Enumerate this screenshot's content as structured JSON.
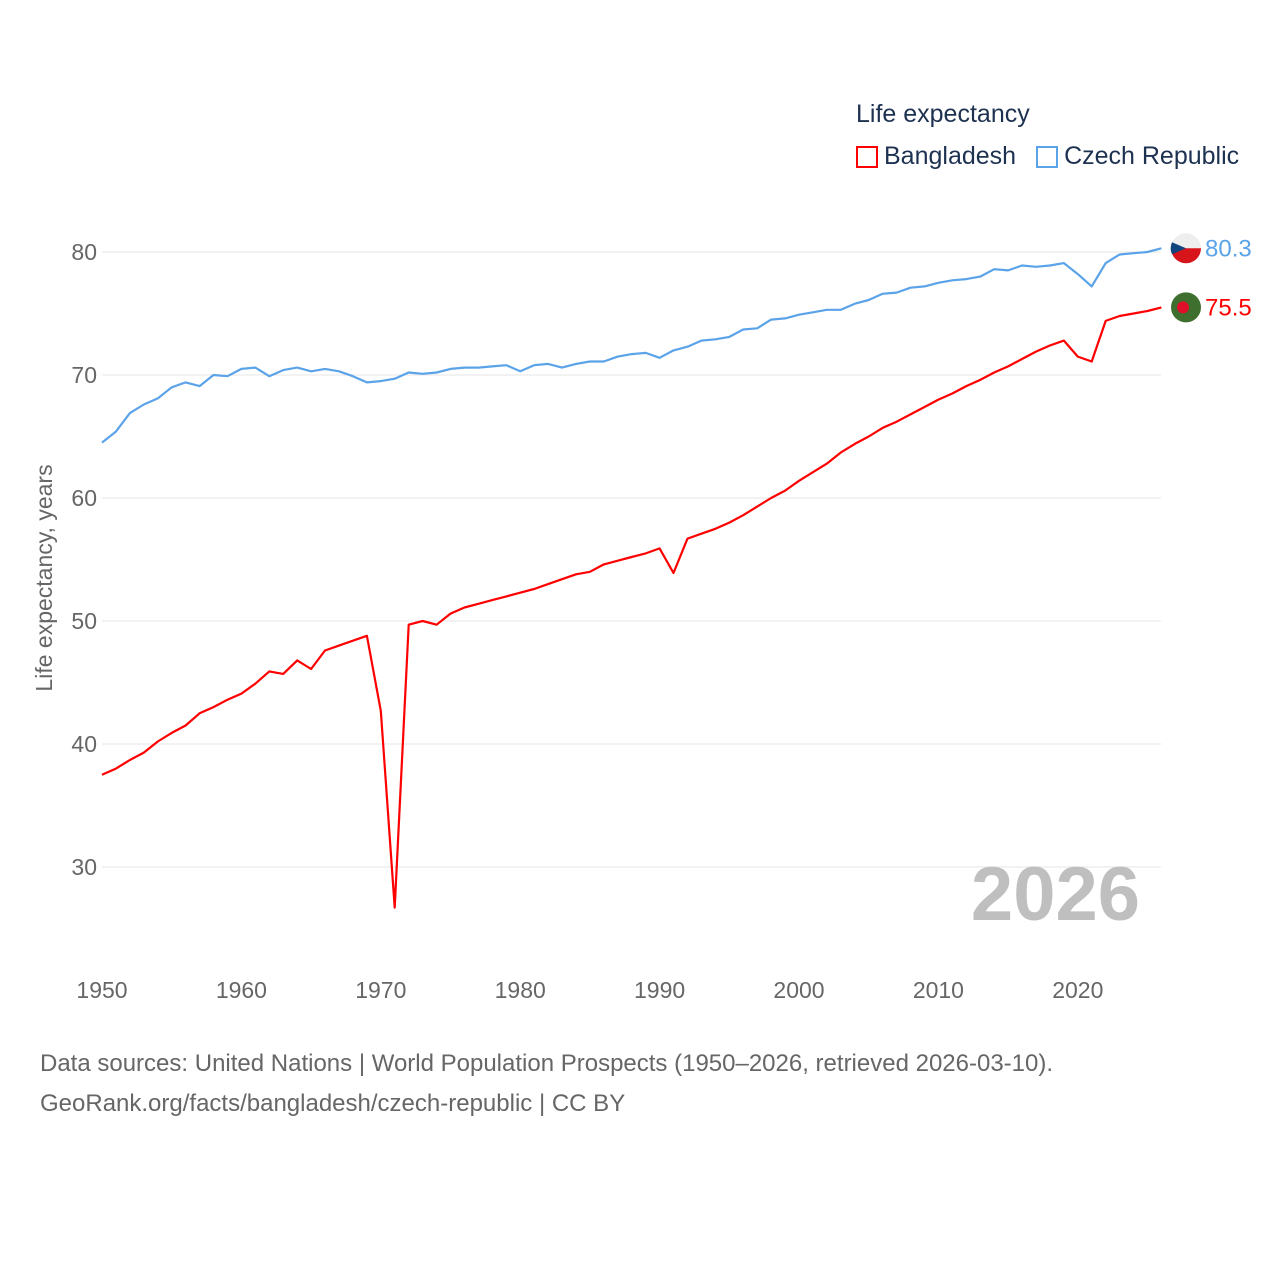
{
  "chart_data": {
    "type": "line",
    "legend_title": "Life expectancy",
    "ylabel": "Life expectancy, years",
    "xlabel": "",
    "ylim": [
      22,
      84
    ],
    "xlim": [
      1950,
      2026
    ],
    "yticks": [
      30,
      40,
      50,
      60,
      70,
      80
    ],
    "xticks": [
      1950,
      1960,
      1970,
      1980,
      1990,
      2000,
      2010,
      2020
    ],
    "grid": true,
    "legend_position": "top-right",
    "year_watermark": "2026",
    "x_start": 1950,
    "series": [
      {
        "name": "Bangladesh",
        "color": "#ff0000",
        "end_label": "75.5",
        "values": [
          37.5,
          38.0,
          38.7,
          39.3,
          40.2,
          40.9,
          41.5,
          42.5,
          43.0,
          43.6,
          44.1,
          44.9,
          45.9,
          45.7,
          46.8,
          46.1,
          47.6,
          48.0,
          48.4,
          48.8,
          42.7,
          26.7,
          49.7,
          50.0,
          49.7,
          50.6,
          51.1,
          51.4,
          51.7,
          52.0,
          52.3,
          52.6,
          53.0,
          53.4,
          53.8,
          54.0,
          54.6,
          54.9,
          55.2,
          55.5,
          55.9,
          53.9,
          56.7,
          57.1,
          57.5,
          58.0,
          58.6,
          59.3,
          60.0,
          60.6,
          61.4,
          62.1,
          62.8,
          63.7,
          64.4,
          65.0,
          65.7,
          66.2,
          66.8,
          67.4,
          68.0,
          68.5,
          69.1,
          69.6,
          70.2,
          70.7,
          71.3,
          71.9,
          72.4,
          72.8,
          71.5,
          71.1,
          74.4,
          74.8,
          75.0,
          75.2,
          75.5
        ]
      },
      {
        "name": "Czech Republic",
        "color": "#5ba3e8",
        "end_label": "80.3",
        "values": [
          64.5,
          65.4,
          66.9,
          67.6,
          68.1,
          69.0,
          69.4,
          69.1,
          70.0,
          69.9,
          70.5,
          70.6,
          69.9,
          70.4,
          70.6,
          70.3,
          70.5,
          70.3,
          69.9,
          69.4,
          69.5,
          69.7,
          70.2,
          70.1,
          70.2,
          70.5,
          70.6,
          70.6,
          70.7,
          70.8,
          70.3,
          70.8,
          70.9,
          70.6,
          70.9,
          71.1,
          71.1,
          71.5,
          71.7,
          71.8,
          71.4,
          72.0,
          72.3,
          72.8,
          72.9,
          73.1,
          73.7,
          73.8,
          74.5,
          74.6,
          74.9,
          75.1,
          75.3,
          75.3,
          75.8,
          76.1,
          76.6,
          76.7,
          77.1,
          77.2,
          77.5,
          77.7,
          77.8,
          78.0,
          78.6,
          78.5,
          78.9,
          78.8,
          78.9,
          79.1,
          78.2,
          77.2,
          79.1,
          79.8,
          79.9,
          80.0,
          80.3
        ]
      }
    ]
  },
  "footer": {
    "line1": "Data sources: United Nations | World Population Prospects (1950–2026, retrieved 2026-03-10).",
    "line2": "GeoRank.org/facts/bangladesh/czech-republic | CC BY"
  }
}
